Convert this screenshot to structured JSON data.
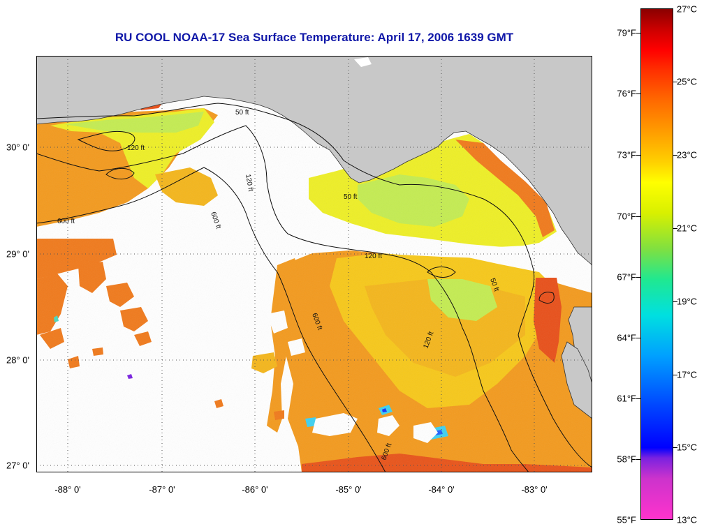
{
  "title": "RU COOL  NOAA-17  Sea Surface Temperature:  April 17, 2006 1639 GMT",
  "axes": {
    "x_ticks": [
      "-88° 0'",
      "-87° 0'",
      "-86° 0'",
      "-85° 0'",
      "-84° 0'",
      "-83° 0'"
    ],
    "y_ticks": [
      "27° 0'",
      "28° 0'",
      "29° 0'",
      "30° 0'"
    ]
  },
  "contours": [
    "50 ft",
    "120 ft",
    "600 ft"
  ],
  "colorbar": {
    "fahrenheit": [
      "55°F",
      "58°F",
      "61°F",
      "64°F",
      "67°F",
      "70°F",
      "73°F",
      "76°F",
      "79°F"
    ],
    "celsius": [
      "13°C",
      "15°C",
      "17°C",
      "19°C",
      "21°C",
      "23°C",
      "25°C",
      "27°C"
    ]
  },
  "colors": {
    "land": "#c8c8c8",
    "cloud": "#ffffff",
    "warm": "#f39a1e",
    "mid": "#f7c81a",
    "yellow": "#eeef26",
    "green": "#b8ea58",
    "red": "#e8501a",
    "title": "#1018a8"
  }
}
